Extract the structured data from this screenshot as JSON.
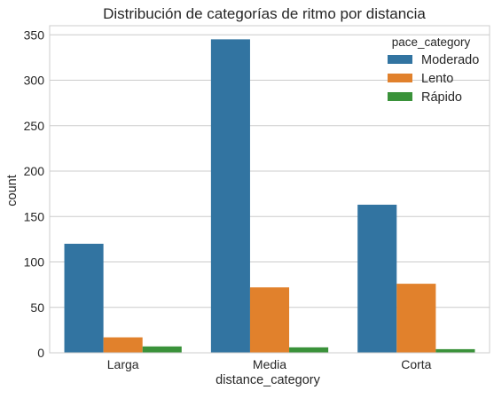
{
  "chart_data": {
    "type": "bar",
    "title": "Distribución de categorías de ritmo por distancia",
    "xlabel": "distance_category",
    "ylabel": "count",
    "categories": [
      "Larga",
      "Media",
      "Corta"
    ],
    "series": [
      {
        "name": "Moderado",
        "values": [
          120,
          345,
          163
        ],
        "color": "#3274a1"
      },
      {
        "name": "Lento",
        "values": [
          17,
          72,
          76
        ],
        "color": "#e1812c"
      },
      {
        "name": "Rápido",
        "values": [
          7,
          6,
          4
        ],
        "color": "#3a923a"
      }
    ],
    "ylim": [
      0,
      360
    ],
    "yticks": [
      "0",
      "50",
      "100",
      "150",
      "200",
      "250",
      "300",
      "350"
    ],
    "legend": {
      "title": "pace_category",
      "placement": "top-right"
    },
    "grid": "horizontal",
    "colors": {
      "grid": "#cccccc",
      "frame": "#cccccc",
      "text": "#262626",
      "background": "#ffffff"
    }
  }
}
